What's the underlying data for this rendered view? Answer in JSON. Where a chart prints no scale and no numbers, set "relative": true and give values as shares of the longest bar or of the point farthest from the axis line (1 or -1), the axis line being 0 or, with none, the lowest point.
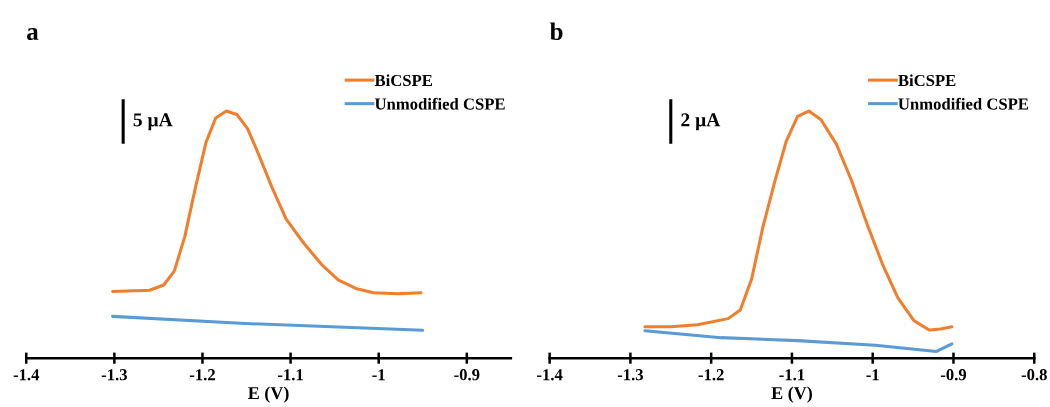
{
  "chart_data": [
    {
      "type": "line",
      "title": "a",
      "xlabel": "E (V)",
      "relative": true,
      "xlim": [
        -1.4,
        -0.85
      ],
      "xticks": [
        -1.4,
        -1.3,
        -1.2,
        -1.1,
        -1,
        -0.9
      ],
      "legend": "top right",
      "grid": false,
      "tick_labels": "x",
      "annotations": [
        "5 µA"
      ],
      "series": [
        {
          "name": "BiCSPE",
          "color": "#f07f2d",
          "x": [
            -1.302,
            -1.26,
            -1.244,
            -1.232,
            -1.22,
            -1.208,
            -1.196,
            -1.185,
            -1.173,
            -1.161,
            -1.149,
            -1.137,
            -1.121,
            -1.105,
            -1.085,
            -1.065,
            -1.046,
            -1.026,
            -1.006,
            -0.978,
            -0.952
          ],
          "values": [
            0.27,
            0.275,
            0.296,
            0.352,
            0.493,
            0.69,
            0.873,
            0.972,
            1.0,
            0.986,
            0.93,
            0.831,
            0.69,
            0.563,
            0.465,
            0.38,
            0.317,
            0.282,
            0.265,
            0.261,
            0.265
          ]
        },
        {
          "name": "Unmodified CSPE",
          "color": "#5b9bd5",
          "x": [
            -1.302,
            -1.157,
            -0.95
          ],
          "values": [
            0.169,
            0.141,
            0.113
          ]
        }
      ]
    },
    {
      "type": "line",
      "title": "b",
      "xlabel": "E (V)",
      "relative": true,
      "xlim": [
        -1.4,
        -0.8
      ],
      "xticks": [
        -1.4,
        -1.3,
        -1.2,
        -1.1,
        -1,
        -0.9,
        -0.8
      ],
      "legend": "top right",
      "grid": false,
      "tick_labels": "x",
      "annotations": [
        "2 µA"
      ],
      "series": [
        {
          "name": "BiCSPE",
          "color": "#f07f2d",
          "x": [
            -1.282,
            -1.25,
            -1.217,
            -1.179,
            -1.164,
            -1.15,
            -1.136,
            -1.121,
            -1.107,
            -1.093,
            -1.079,
            -1.064,
            -1.045,
            -1.026,
            -1.007,
            -0.988,
            -0.969,
            -0.949,
            -0.93,
            -0.916,
            -0.902
          ],
          "values": [
            0.127,
            0.127,
            0.135,
            0.16,
            0.195,
            0.319,
            0.53,
            0.717,
            0.878,
            0.978,
            1.0,
            0.965,
            0.866,
            0.717,
            0.543,
            0.381,
            0.245,
            0.152,
            0.114,
            0.118,
            0.127
          ]
        },
        {
          "name": "Unmodified CSPE",
          "color": "#5b9bd5",
          "x": [
            -1.282,
            -1.188,
            -1.093,
            -0.997,
            -0.921,
            -0.902
          ],
          "values": [
            0.111,
            0.083,
            0.071,
            0.052,
            0.027,
            0.058
          ]
        }
      ]
    }
  ]
}
